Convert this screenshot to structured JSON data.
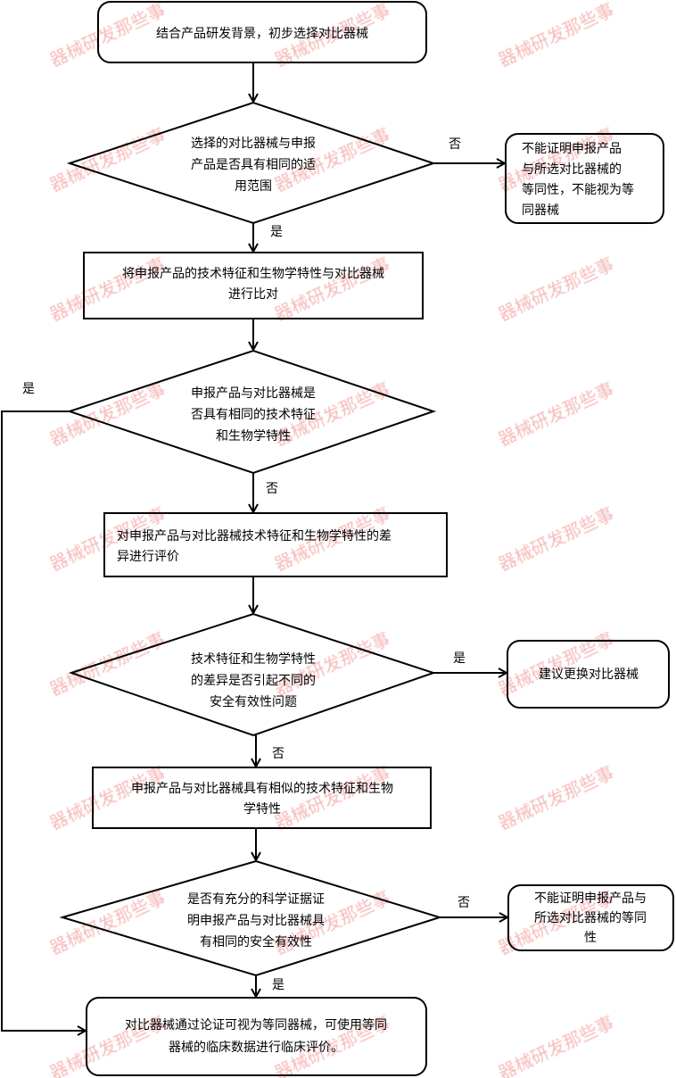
{
  "watermark": "器械研发那些事",
  "nodes": {
    "start": [
      "结合产品研发背景，初步选择对比器械"
    ],
    "decision1": [
      "选择的对比器械与申报",
      "产品是否具有相同的适",
      "用范围"
    ],
    "no_result1": [
      "不能证明申报产品",
      "与所选对比器械的",
      "等同性，不能视为等",
      "同器械"
    ],
    "compare": [
      "将申报产品的技术特征和生物学特性与对比器械",
      "进行比对"
    ],
    "decision2": [
      "申报产品与对比器械是",
      "否具有相同的技术特征",
      "和生物学特性"
    ],
    "evaluate": [
      "对申报产品与对比器械技术特征和生物学特性的差",
      "异进行评价"
    ],
    "decision3": [
      "技术特征和生物学特性",
      "的差异是否引起不同的",
      "安全有效性问题"
    ],
    "replace": [
      "建议更换对比器械"
    ],
    "similar": [
      "申报产品与对比器械具有相似的技术特征和生物",
      "学特性"
    ],
    "decision4": [
      "是否有充分的科学证据证",
      "明申报产品与对比器械具",
      "有相同的安全有效性"
    ],
    "no_result2": [
      "不能证明申报产品与",
      "所选对比器械的等同",
      "性"
    ],
    "end": [
      "对比器械通过论证可视为等同器械，可使用等同",
      "器械的临床数据进行临床评价。"
    ]
  },
  "edge_labels": {
    "d1_no": "否",
    "d1_yes": "是",
    "d2_yes": "是",
    "d2_no": "否",
    "d3_yes": "是",
    "d3_no": "否",
    "d4_no": "否",
    "d4_yes": "是"
  }
}
